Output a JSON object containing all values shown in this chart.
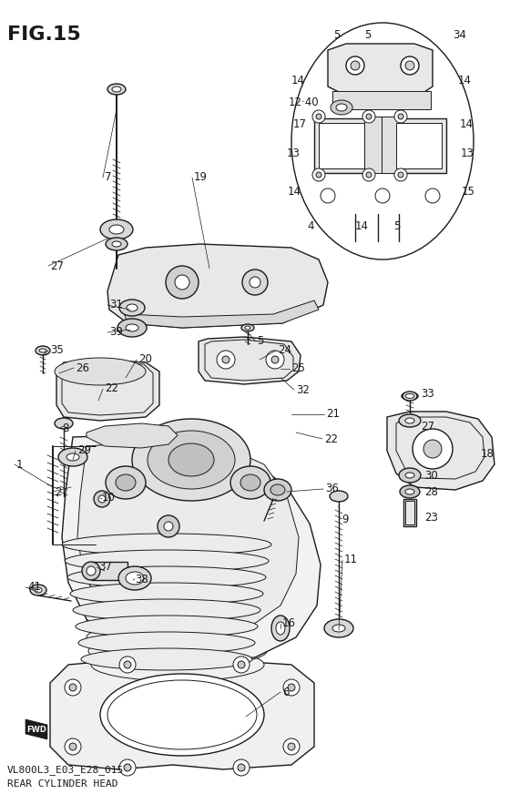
{
  "title": "FIG.15",
  "subtitle1": "VL800L3_E03_E28_015",
  "subtitle2": "REAR CYLINDER HEAD",
  "bg_color": "#ffffff",
  "fig_width": 5.6,
  "fig_height": 8.83,
  "dpi": 100,
  "title_fs": 16,
  "label_fs": 8.5,
  "sub_fs": 8,
  "lc": "#1a1a1a",
  "labels_main": [
    [
      "7",
      115,
      195
    ],
    [
      "27",
      55,
      292
    ],
    [
      "19",
      213,
      195
    ],
    [
      "31",
      120,
      335
    ],
    [
      "39",
      120,
      365
    ],
    [
      "35",
      55,
      385
    ],
    [
      "26",
      83,
      404
    ],
    [
      "20",
      152,
      395
    ],
    [
      "22",
      115,
      427
    ],
    [
      "8",
      68,
      470
    ],
    [
      "29",
      85,
      495
    ],
    [
      "1",
      18,
      510
    ],
    [
      "2",
      60,
      540
    ],
    [
      "10",
      112,
      547
    ],
    [
      "37",
      108,
      623
    ],
    [
      "41",
      30,
      645
    ],
    [
      "38",
      148,
      637
    ],
    [
      "16",
      310,
      685
    ],
    [
      "6",
      310,
      760
    ],
    [
      "5",
      282,
      374
    ],
    [
      "24",
      305,
      385
    ],
    [
      "25",
      320,
      405
    ],
    [
      "32",
      325,
      428
    ],
    [
      "21",
      358,
      455
    ],
    [
      "22",
      356,
      482
    ],
    [
      "36",
      357,
      537
    ],
    [
      "9",
      375,
      571
    ],
    [
      "11",
      378,
      615
    ]
  ],
  "labels_inset1": [
    [
      "5",
      366,
      38
    ],
    [
      "5",
      400,
      38
    ],
    [
      "34",
      497,
      38
    ],
    [
      "14",
      320,
      88
    ],
    [
      "14",
      503,
      88
    ],
    [
      "12·40",
      317,
      112
    ],
    [
      "17",
      322,
      136
    ],
    [
      "14",
      505,
      136
    ],
    [
      "13",
      315,
      168
    ],
    [
      "13",
      506,
      168
    ],
    [
      "14",
      316,
      210
    ],
    [
      "15",
      507,
      210
    ],
    [
      "4",
      337,
      248
    ],
    [
      "14",
      390,
      248
    ],
    [
      "5",
      432,
      248
    ]
  ],
  "labels_inset2": [
    [
      "33",
      462,
      433
    ],
    [
      "27",
      462,
      468
    ],
    [
      "18",
      528,
      498
    ],
    [
      "30",
      466,
      522
    ],
    [
      "28",
      466,
      541
    ],
    [
      "23",
      466,
      568
    ]
  ]
}
